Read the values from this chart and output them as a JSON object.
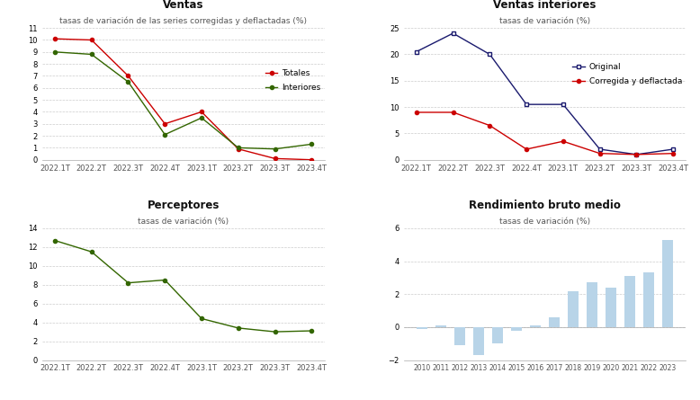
{
  "ventas_labels": [
    "2022.1T",
    "2022.2T",
    "2022.3T",
    "2022.4T",
    "2023.1T",
    "2023.2T",
    "2023.3T",
    "2023.4T"
  ],
  "ventas_totales": [
    10.1,
    10.0,
    7.0,
    3.0,
    4.0,
    0.9,
    0.1,
    0.0
  ],
  "ventas_interiores_top": [
    9.0,
    8.8,
    6.5,
    2.1,
    3.5,
    1.0,
    0.9,
    1.3
  ],
  "ventas_title": "Ventas",
  "ventas_subtitle": "tasas de variación de las series corregidas y deflactadas (%)",
  "ventas_ylim": [
    0,
    11
  ],
  "ventas_yticks": [
    0,
    1,
    2,
    3,
    4,
    5,
    6,
    7,
    8,
    9,
    10,
    11
  ],
  "ventas_legend": [
    "Totales",
    "Interiores"
  ],
  "ventas_totales_color": "#cc0000",
  "ventas_interiores_color": "#336600",
  "vi_labels": [
    "2022.1T",
    "2022.2T",
    "2022.3T",
    "2022.4T",
    "2023.1T",
    "2023.2T",
    "2023.3T",
    "2023.4T"
  ],
  "vi_original": [
    20.5,
    24.0,
    20.0,
    10.5,
    10.5,
    2.0,
    1.0,
    2.0
  ],
  "vi_corregida": [
    9.0,
    9.0,
    6.5,
    2.0,
    3.5,
    1.2,
    1.0,
    1.2
  ],
  "vi_title": "Ventas interiores",
  "vi_subtitle": "tasas de variación (%)",
  "vi_ylim": [
    0,
    25
  ],
  "vi_yticks": [
    0,
    5,
    10,
    15,
    20,
    25
  ],
  "vi_legend": [
    "Original",
    "Corregida y deflactada"
  ],
  "vi_original_color": "#1a1a6e",
  "vi_corregida_color": "#cc0000",
  "perc_labels": [
    "2022.1T",
    "2022.2T",
    "2022.3T",
    "2022.4T",
    "2023.1T",
    "2023.2T",
    "2023.3T",
    "2023.4T"
  ],
  "perc_values": [
    12.7,
    11.5,
    8.2,
    8.5,
    4.4,
    3.4,
    3.0,
    3.1
  ],
  "perc_title": "Perceptores",
  "perc_subtitle": "tasas de variación (%)",
  "perc_ylim": [
    0,
    14
  ],
  "perc_yticks": [
    0,
    2,
    4,
    6,
    8,
    10,
    12,
    14
  ],
  "perc_color": "#336600",
  "rbm_labels": [
    2010,
    2011,
    2012,
    2013,
    2014,
    2015,
    2016,
    2017,
    2018,
    2019,
    2020,
    2021,
    2022,
    2023
  ],
  "rbm_values": [
    -0.1,
    0.1,
    -1.1,
    -1.7,
    -1.0,
    -0.2,
    0.1,
    0.6,
    2.2,
    2.7,
    2.4,
    3.1,
    3.3,
    5.3
  ],
  "rbm_title": "Rendimiento bruto medio",
  "rbm_subtitle": "tasas de variación (%)",
  "rbm_ylim": [
    -2,
    6
  ],
  "rbm_yticks": [
    -2,
    -1,
    0,
    1,
    2,
    3,
    4,
    5,
    6
  ],
  "rbm_color": "#b8d4e8",
  "rbm_last_color": "#b8d4e8",
  "bg_color": "#ffffff",
  "grid_color": "#cccccc",
  "title_fontsize": 8.5,
  "subtitle_fontsize": 6.5,
  "tick_fontsize": 6,
  "legend_fontsize": 6.5
}
